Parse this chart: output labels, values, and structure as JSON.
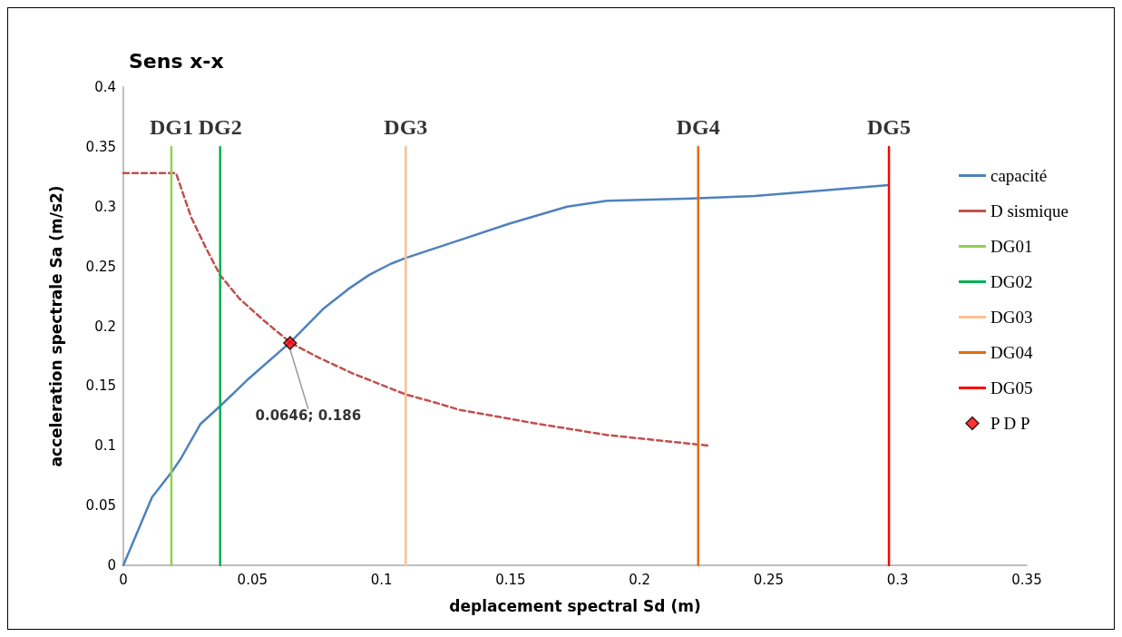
{
  "chart_data": {
    "type": "line",
    "title": "Sens x-x",
    "xlabel": "deplacement spectral Sd (m)",
    "ylabel": "acceleration spectrale Sa (m/s2)",
    "xlim": [
      0,
      0.35
    ],
    "xticks": [
      0,
      0.05,
      0.1,
      0.15,
      0.2,
      0.25,
      0.3,
      0.35
    ],
    "ylim": [
      0,
      0.4
    ],
    "yticks": [
      0,
      0.05,
      0.1,
      0.15,
      0.2,
      0.25,
      0.3,
      0.35,
      0.4
    ],
    "grid": false,
    "legend": "right",
    "annotations": [
      {
        "text": "DG1",
        "x": 0.0186,
        "y": 0.35
      },
      {
        "text": "DG2",
        "x": 0.0375,
        "y": 0.35
      },
      {
        "text": "DG3",
        "x": 0.1094,
        "y": 0.35
      },
      {
        "text": "DG4",
        "x": 0.2227,
        "y": 0.35
      },
      {
        "text": "DG5",
        "x": 0.2966,
        "y": 0.35
      }
    ],
    "series": [
      {
        "name": "capacité",
        "color": "#4f81bd",
        "line_style": "solid",
        "x": [
          0,
          0.0111,
          0.0187,
          0.0222,
          0.0298,
          0.0374,
          0.0485,
          0.0649,
          0.0777,
          0.0871,
          0.0953,
          0.1034,
          0.1093,
          0.1303,
          0.1498,
          0.1719,
          0.1874,
          0.2225,
          0.2446,
          0.2965
        ],
        "values": [
          0,
          0.057,
          0.078,
          0.089,
          0.118,
          0.133,
          0.156,
          0.187,
          0.215,
          0.231,
          0.243,
          0.252,
          0.257,
          0.272,
          0.286,
          0.3,
          0.305,
          0.307,
          0.309,
          0.318
        ]
      },
      {
        "name": "D sismique",
        "color": "#c0504d",
        "line_style": "dashed",
        "x": [
          0,
          0.0204,
          0.0263,
          0.0321,
          0.0374,
          0.045,
          0.0543,
          0.0649,
          0.0754,
          0.0883,
          0.1093,
          0.121,
          0.1303,
          0.1588,
          0.1874,
          0.2272
        ],
        "values": [
          0.328,
          0.328,
          0.291,
          0.265,
          0.243,
          0.223,
          0.205,
          0.186,
          0.174,
          0.161,
          0.143,
          0.136,
          0.13,
          0.119,
          0.109,
          0.1
        ]
      },
      {
        "name": "DG01",
        "color": "#92d050",
        "line_style": "solid",
        "x": [
          0.0186,
          0.0186
        ],
        "values": [
          0,
          0.35
        ]
      },
      {
        "name": "DG02",
        "color": "#00b050",
        "line_style": "solid",
        "x": [
          0.0375,
          0.0375
        ],
        "values": [
          0,
          0.35
        ]
      },
      {
        "name": "DG03",
        "color": "#fac090",
        "line_style": "solid",
        "x": [
          0.1094,
          0.1094
        ],
        "values": [
          0,
          0.35
        ]
      },
      {
        "name": "DG04",
        "color": "#e46c0a",
        "line_style": "solid",
        "x": [
          0.2227,
          0.2227
        ],
        "values": [
          0,
          0.35
        ]
      },
      {
        "name": "DG05",
        "color": "#ff0000",
        "line_style": "solid",
        "x": [
          0.2966,
          0.2966
        ],
        "values": [
          0,
          0.35
        ]
      },
      {
        "name": "P D P",
        "type": "scatter",
        "marker": "diamond",
        "color": "#ff0000",
        "x": [
          0.0646
        ],
        "values": [
          0.186
        ],
        "value_labels": [
          "0.0646; 0.186"
        ]
      }
    ]
  }
}
